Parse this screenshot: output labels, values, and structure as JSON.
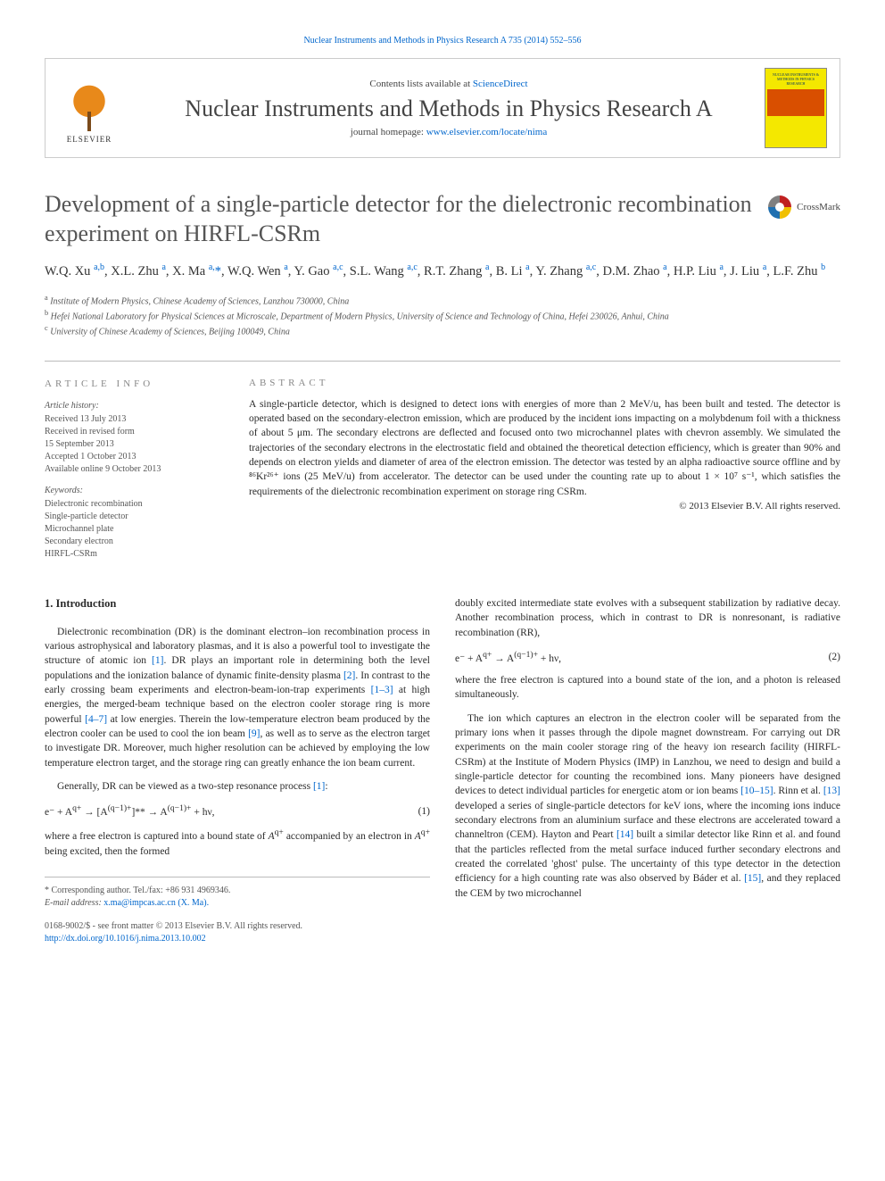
{
  "header": {
    "running_head": "Nuclear Instruments and Methods in Physics Research A 735 (2014) 552–556",
    "contents_prefix": "Contents lists available at ",
    "contents_link": "ScienceDirect",
    "journal_name": "Nuclear Instruments and Methods in Physics Research A",
    "homepage_prefix": "journal homepage: ",
    "homepage_url": "www.elsevier.com/locate/nima",
    "publisher_label": "ELSEVIER",
    "cover_text_top": "NUCLEAR INSTRUMENTS & METHODS IN PHYSICS RESEARCH"
  },
  "article": {
    "title": "Development of a single-particle detector for the dielectronic recombination experiment on HIRFL-CSRm",
    "crossmark_label": "CrossMark",
    "authors_html": "W.Q. Xu <sup>a,b</sup>, X.L. Zhu <sup>a</sup>, X. Ma <sup>a,</sup><span class='star'>*</span>, W.Q. Wen <sup>a</sup>, Y. Gao <sup>a,c</sup>, S.L. Wang <sup>a,c</sup>, R.T. Zhang <sup>a</sup>, B. Li <sup>a</sup>, Y. Zhang <sup>a,c</sup>, D.M. Zhao <sup>a</sup>, H.P. Liu <sup>a</sup>, J. Liu <sup>a</sup>, L.F. Zhu <sup>b</sup>",
    "affiliations": [
      "<sup>a</sup> Institute of Modern Physics, Chinese Academy of Sciences, Lanzhou 730000, China",
      "<sup>b</sup> Hefei National Laboratory for Physical Sciences at Microscale, Department of Modern Physics, University of Science and Technology of China, Hefei 230026, Anhui, China",
      "<sup>c</sup> University of Chinese Academy of Sciences, Beijing 100049, China"
    ]
  },
  "meta": {
    "info_heading": "ARTICLE INFO",
    "abstract_heading": "ABSTRACT",
    "history_label": "Article history:",
    "history": [
      "Received 13 July 2013",
      "Received in revised form",
      "15 September 2013",
      "Accepted 1 October 2013",
      "Available online 9 October 2013"
    ],
    "keywords_label": "Keywords:",
    "keywords": [
      "Dielectronic recombination",
      "Single-particle detector",
      "Microchannel plate",
      "Secondary electron",
      "HIRFL-CSRm"
    ],
    "abstract": "A single-particle detector, which is designed to detect ions with energies of more than 2 MeV/u, has been built and tested. The detector is operated based on the secondary-electron emission, which are produced by the incident ions impacting on a molybdenum foil with a thickness of about 5 μm. The secondary electrons are deflected and focused onto two microchannel plates with chevron assembly. We simulated the trajectories of the secondary electrons in the electrostatic field and obtained the theoretical detection efficiency, which is greater than 90% and depends on electron yields and diameter of area of the electron emission. The detector was tested by an alpha radioactive source offline and by ⁸⁶Kr²⁶⁺ ions (25 MeV/u) from accelerator. The detector can be used under the counting rate up to about 1 × 10⁷ s⁻¹, which satisfies the requirements of the dielectronic recombination experiment on storage ring CSRm.",
    "copyright": "© 2013 Elsevier B.V. All rights reserved."
  },
  "body": {
    "section1_heading": "1.  Introduction",
    "col1_p1": "Dielectronic recombination (DR) is the dominant electron–ion recombination process in various astrophysical and laboratory plasmas, and it is also a powerful tool to investigate the structure of atomic ion <span class='reflink'>[1]</span>. DR plays an important role in determining both the level populations and the ionization balance of dynamic finite-density plasma <span class='reflink'>[2]</span>. In contrast to the early crossing beam experiments and electron-beam-ion-trap experiments <span class='reflink'>[1–3]</span> at high energies, the merged-beam technique based on the electron cooler storage ring is more powerful <span class='reflink'>[4–7]</span> at low energies. Therein the low-temperature electron beam produced by the electron cooler can be used to cool the ion beam <span class='reflink'>[9]</span>, as well as to serve as the electron target to investigate DR. Moreover, much higher resolution can be achieved by employing the low temperature electron target, and the storage ring can greatly enhance the ion beam current.",
    "col1_p2": "Generally, DR can be viewed as a two-step resonance process <span class='reflink'>[1]</span>:",
    "eq1": "e⁻ + A<sup>q+</sup> → [A<sup>(q−1)+</sup>]** → A<sup>(q−1)+</sup> + hν,",
    "eq1_num": "(1)",
    "col1_p3": "where a free electron is captured into a bound state of <i>A</i><sup>q+</sup> accompanied by an electron in <i>A</i><sup>q+</sup> being excited, then the formed",
    "col2_p1": "doubly excited intermediate state evolves with a subsequent stabilization by radiative decay. Another recombination process, which in contrast to DR is nonresonant, is radiative recombination (RR),",
    "eq2": "e⁻ + A<sup>q+</sup> → A<sup>(q−1)+</sup> + hν,",
    "eq2_num": "(2)",
    "col2_p2": "where the free electron is captured into a bound state of the ion, and a photon is released simultaneously.",
    "col2_p3": "The ion which captures an electron in the electron cooler will be separated from the primary ions when it passes through the dipole magnet downstream. For carrying out DR experiments on the main cooler storage ring of the heavy ion research facility (HIRFL-CSRm) at the Institute of Modern Physics (IMP) in Lanzhou, we need to design and build a single-particle detector for counting the recombined ions. Many pioneers have designed devices to detect individual particles for energetic atom or ion beams <span class='reflink'>[10–15]</span>. Rinn et al. <span class='reflink'>[13]</span> developed a series of single-particle detectors for keV ions, where the incoming ions induce secondary electrons from an aluminium surface and these electrons are accelerated toward a channeltron (CEM). Hayton and Peart <span class='reflink'>[14]</span> built a similar detector like Rinn et al. and found that the particles reflected from the metal surface induced further secondary electrons and created the correlated 'ghost' pulse. The uncertainty of this type detector in the detection efficiency for a high counting rate was also observed by Báder et al. <span class='reflink'>[15]</span>, and they replaced the CEM by two microchannel"
  },
  "footer": {
    "corresponding": "* Corresponding author. Tel./fax: +86 931 4969346.",
    "email_label": "E-mail address: ",
    "email": "x.ma@impcas.ac.cn (X. Ma).",
    "issn_line": "0168-9002/$ - see front matter © 2013 Elsevier B.V. All rights reserved.",
    "doi": "http://dx.doi.org/10.1016/j.nima.2013.10.002"
  },
  "colors": {
    "link": "#0066cc",
    "text": "#2a2a2a",
    "muted": "#555555",
    "rule": "#bbbbbb",
    "cover_bg": "#f4e800",
    "cover_band": "#d94f00"
  }
}
